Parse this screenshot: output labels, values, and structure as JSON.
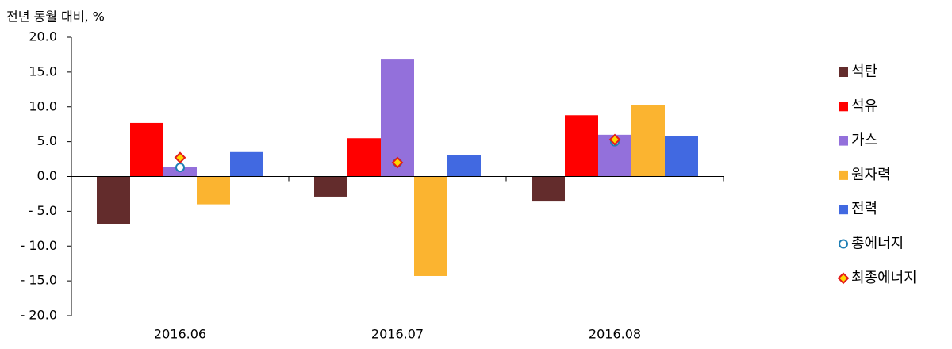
{
  "chart_data": {
    "type": "bar",
    "y_label": "전년 동월 대비, %",
    "categories": [
      "2016.06",
      "2016.07",
      "2016.08"
    ],
    "series": [
      {
        "name": "석탄",
        "color": "#632c2c",
        "values": [
          -6.8,
          -2.9,
          -3.6
        ]
      },
      {
        "name": "석유",
        "color": "#ff0000",
        "values": [
          7.7,
          5.5,
          8.8
        ]
      },
      {
        "name": "가스",
        "color": "#9370db",
        "values": [
          1.4,
          16.8,
          6.0
        ]
      },
      {
        "name": "원자력",
        "color": "#fbb430",
        "values": [
          -4.0,
          -14.3,
          10.2
        ]
      },
      {
        "name": "전력",
        "color": "#4169e1",
        "values": [
          3.5,
          3.1,
          5.8
        ]
      },
      {
        "name": "총에너지",
        "color": "#1f7fb5",
        "marker": "circle",
        "values": [
          1.3,
          2.0,
          5.0
        ]
      },
      {
        "name": "최종에너지",
        "color": "#e31a1c",
        "marker": "diamond",
        "values": [
          2.7,
          2.0,
          5.3
        ]
      }
    ],
    "ylim": [
      -20,
      20
    ],
    "yticks": [
      {
        "value": -20,
        "label": "- 20.0"
      },
      {
        "value": -15,
        "label": "- 15.0"
      },
      {
        "value": -10,
        "label": "- 10.0"
      },
      {
        "value": -5,
        "label": "- 5.0"
      },
      {
        "value": 0,
        "label": "0.0"
      },
      {
        "value": 5,
        "label": "5.0"
      },
      {
        "value": 10,
        "label": "10.0"
      },
      {
        "value": 15,
        "label": "15.0"
      },
      {
        "value": 20,
        "label": "20.0"
      }
    ],
    "legend": "right"
  }
}
